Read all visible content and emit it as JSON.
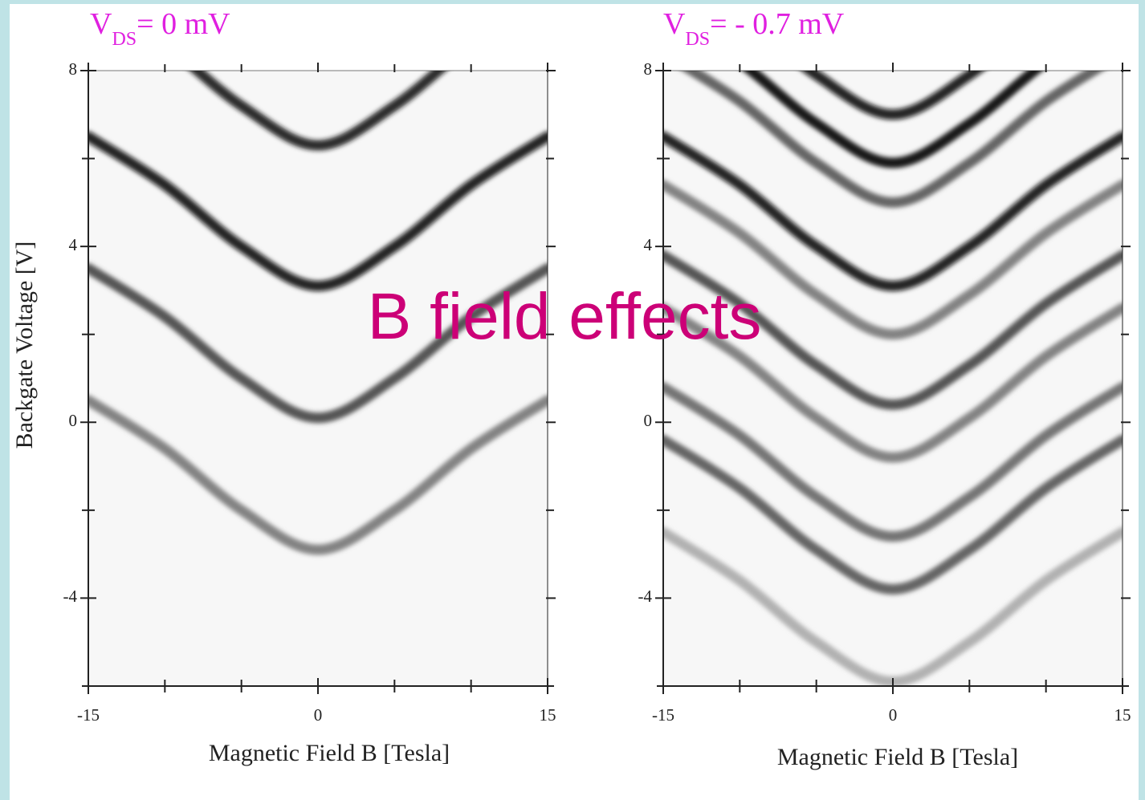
{
  "overlay_text": "B field effects",
  "chart_data": [
    {
      "type": "line",
      "title": [
        "V",
        "DS",
        "= 0 mV"
      ],
      "xlabel": "Magnetic Field B [Tesla]",
      "ylabel": "Backgate Voltage [V]",
      "x": [
        -15,
        -10,
        -5,
        0,
        5,
        10,
        15
      ],
      "xlim": [
        -15,
        15
      ],
      "xticks": [
        -15,
        0,
        15
      ],
      "x_minor_ticks": [
        -10,
        -5,
        5,
        10
      ],
      "ylim": [
        -6,
        8
      ],
      "yticks": [
        -4,
        0,
        4,
        8
      ],
      "y_minor_ticks": [
        -6,
        -2,
        2,
        6
      ],
      "series": [
        {
          "color": "#1a1a1a",
          "values": [
            9.7,
            8.6,
            7.2,
            6.3,
            7.2,
            8.6,
            9.7
          ]
        },
        {
          "color": "#111111",
          "values": [
            6.5,
            5.4,
            4.0,
            3.1,
            4.0,
            5.4,
            6.5
          ]
        },
        {
          "color": "#444444",
          "values": [
            3.5,
            2.4,
            1.0,
            0.1,
            1.0,
            2.4,
            3.5
          ]
        },
        {
          "color": "#777777",
          "values": [
            0.5,
            -0.6,
            -2.0,
            -2.9,
            -2.0,
            -0.6,
            0.5
          ]
        }
      ]
    },
    {
      "type": "line",
      "title": [
        "V",
        "DS",
        "= - 0.7 mV"
      ],
      "xlabel": "Magnetic Field B [Tesla]",
      "x": [
        -15,
        -10,
        -5,
        0,
        5,
        10,
        15
      ],
      "xlim": [
        -15,
        15
      ],
      "xticks": [
        -15,
        0,
        15
      ],
      "x_minor_ticks": [
        -10,
        -5,
        5,
        10
      ],
      "ylim": [
        -6,
        8
      ],
      "yticks": [
        -4,
        0,
        4,
        8
      ],
      "y_minor_ticks": [
        -6,
        -2,
        2,
        6
      ],
      "series": [
        {
          "color": "#111111",
          "values": [
            10.4,
            9.3,
            7.9,
            7.0,
            7.9,
            9.3,
            10.4
          ]
        },
        {
          "color": "#000000",
          "values": [
            9.3,
            8.2,
            6.8,
            5.9,
            6.8,
            8.2,
            9.3
          ]
        },
        {
          "color": "#555555",
          "values": [
            8.4,
            7.3,
            5.9,
            5.0,
            5.9,
            7.3,
            8.4
          ]
        },
        {
          "color": "#111111",
          "values": [
            6.5,
            5.4,
            4.0,
            3.1,
            4.0,
            5.4,
            6.5
          ]
        },
        {
          "color": "#777777",
          "values": [
            5.4,
            4.3,
            2.9,
            2.0,
            2.9,
            4.3,
            5.4
          ]
        },
        {
          "color": "#444444",
          "values": [
            3.8,
            2.7,
            1.3,
            0.4,
            1.3,
            2.7,
            3.8
          ]
        },
        {
          "color": "#777777",
          "values": [
            2.6,
            1.5,
            0.1,
            -0.8,
            0.1,
            1.5,
            2.6
          ]
        },
        {
          "color": "#666666",
          "values": [
            0.8,
            -0.3,
            -1.7,
            -2.6,
            -1.7,
            -0.3,
            0.8
          ]
        },
        {
          "color": "#555555",
          "values": [
            -0.4,
            -1.5,
            -2.9,
            -3.8,
            -2.9,
            -1.5,
            -0.4
          ]
        },
        {
          "color": "#aaaaaa",
          "values": [
            -2.5,
            -3.6,
            -5.0,
            -5.9,
            -5.0,
            -3.6,
            -2.5
          ]
        }
      ]
    }
  ]
}
